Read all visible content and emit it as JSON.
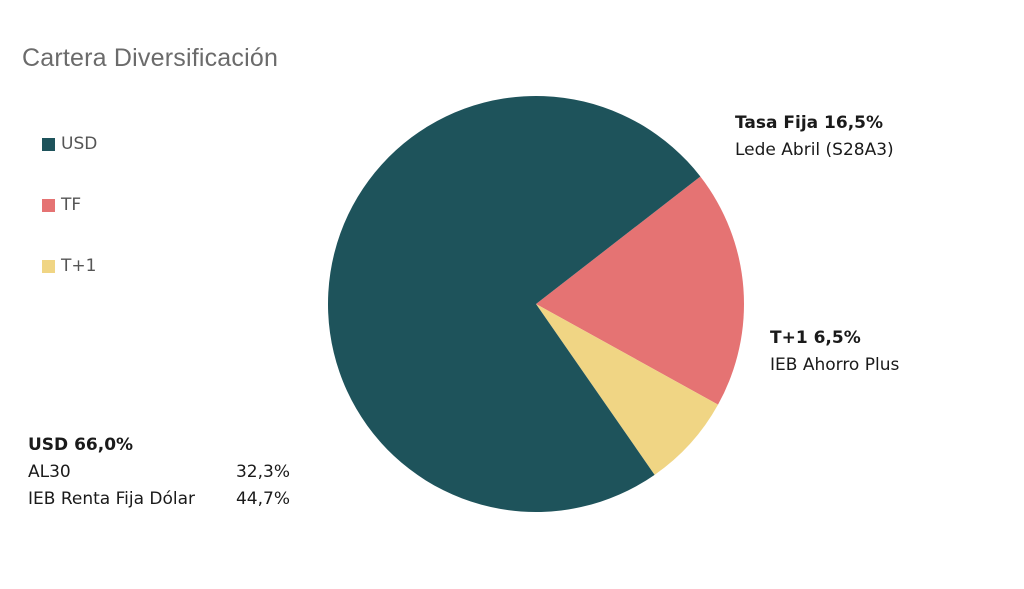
{
  "chart_data": {
    "type": "pie",
    "title": "Cartera Diversificación",
    "legend": {
      "placement": "left"
    },
    "slices": [
      {
        "name": "USD",
        "value": 66.0,
        "color": "#1e535b"
      },
      {
        "name": "TF",
        "value": 16.5,
        "color": "#e57373"
      },
      {
        "name": "T+1",
        "value": 6.5,
        "color": "#f0d584"
      }
    ],
    "annotations": {
      "tf": {
        "head": "Tasa Fija 16,5%",
        "lines": [
          "Lede Abril (S28A3)"
        ]
      },
      "t1": {
        "head": "T+1 6,5%",
        "lines": [
          "IEB Ahorro Plus"
        ]
      },
      "usd": {
        "head": "USD 66,0%",
        "rows": [
          {
            "label": "AL30",
            "value": "32,3%"
          },
          {
            "label": "IEB Renta Fija Dólar",
            "value": "44,7%"
          }
        ]
      }
    }
  }
}
